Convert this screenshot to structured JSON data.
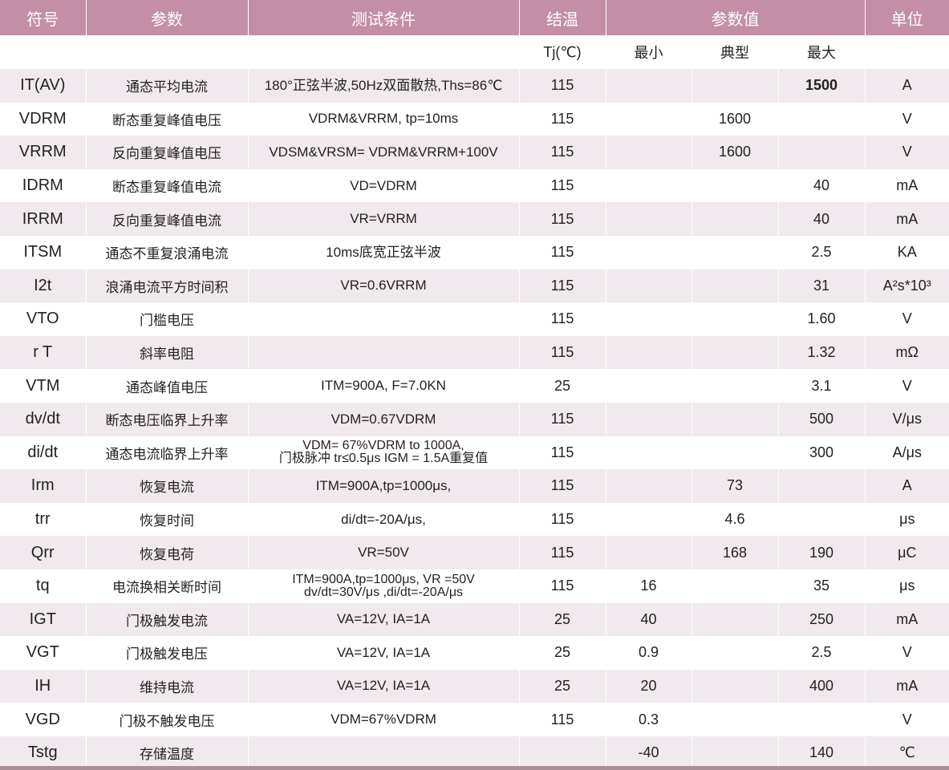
{
  "header": {
    "symbol": "符号",
    "parameter": "参数",
    "condition": "测试条件",
    "junction_temp": "结温",
    "values": "参数值",
    "unit": "单位"
  },
  "subheader": {
    "tj": "Tj(℃)",
    "min": "最小",
    "typ": "典型",
    "max": "最大"
  },
  "rows": [
    {
      "symbol": "IT(AV)",
      "name": "通态平均电流",
      "condition": "180°正弦半波,50Hz双面散热,Ths=86℃",
      "tj": "115",
      "min": "",
      "typ": "",
      "max": "1500",
      "unit": "A",
      "max_bold": true
    },
    {
      "symbol": "VDRM",
      "name": "断态重复峰值电压",
      "condition": "VDRM&VRRM, tp=10ms",
      "tj": "115",
      "min": "",
      "typ": "1600",
      "max": "",
      "unit": "V"
    },
    {
      "symbol": "VRRM",
      "name": "反向重复峰值电压",
      "condition": "VDSM&VRSM= VDRM&VRRM+100V",
      "tj": "115",
      "min": "",
      "typ": "1600",
      "max": "",
      "unit": "V"
    },
    {
      "symbol": "IDRM",
      "name": "断态重复峰值电流",
      "condition": "VD=VDRM",
      "tj": "115",
      "min": "",
      "typ": "",
      "max": "40",
      "unit": "mA"
    },
    {
      "symbol": "IRRM",
      "name": "反向重复峰值电流",
      "condition": "VR=VRRM",
      "tj": "115",
      "min": "",
      "typ": "",
      "max": "40",
      "unit": "mA"
    },
    {
      "symbol": "ITSM",
      "name": "通态不重复浪涌电流",
      "condition": "10ms底宽正弦半波",
      "tj": "115",
      "min": "",
      "typ": "",
      "max": "2.5",
      "unit": "KA"
    },
    {
      "symbol": "I2t",
      "name": "浪涌电流平方时间积",
      "condition": "VR=0.6VRRM",
      "tj": "115",
      "min": "",
      "typ": "",
      "max": "31",
      "unit": "A²s*10³"
    },
    {
      "symbol": "VTO",
      "name": "门槛电压",
      "condition": "",
      "tj": "115",
      "min": "",
      "typ": "",
      "max": "1.60",
      "unit": "V"
    },
    {
      "symbol": "r T",
      "name": "斜率电阻",
      "condition": "",
      "tj": "115",
      "min": "",
      "typ": "",
      "max": "1.32",
      "unit": "mΩ"
    },
    {
      "symbol": "VTM",
      "name": "通态峰值电压",
      "condition": "ITM=900A, F=7.0KN",
      "tj": "25",
      "min": "",
      "typ": "",
      "max": "3.1",
      "unit": "V"
    },
    {
      "symbol": "dv/dt",
      "name": "断态电压临界上升率",
      "condition": "VDM=0.67VDRM",
      "tj": "115",
      "min": "",
      "typ": "",
      "max": "500",
      "unit": "V/μs"
    },
    {
      "symbol": "di/dt",
      "name": "通态电流临界上升率",
      "condition": "VDM= 67%VDRM to 1000A,",
      "condition2": "门极脉冲 tr≤0.5μs IGM = 1.5A重复值",
      "tj": "115",
      "min": "",
      "typ": "",
      "max": "300",
      "unit": "A/μs"
    },
    {
      "symbol": "Irm",
      "name": "恢复电流",
      "condition": "ITM=900A,tp=1000μs,",
      "tj": "115",
      "min": "",
      "typ": "73",
      "max": "",
      "unit": "A"
    },
    {
      "symbol": "trr",
      "name": "恢复时间",
      "condition": "di/dt=-20A/μs,",
      "tj": "115",
      "min": "",
      "typ": "4.6",
      "max": "",
      "unit": "μs"
    },
    {
      "symbol": "Qrr",
      "name": "恢复电荷",
      "condition": "VR=50V",
      "tj": "115",
      "min": "",
      "typ": "168",
      "max": "190",
      "unit": "μC"
    },
    {
      "symbol": "tq",
      "name": "电流换相关断时间",
      "condition": "ITM=900A,tp=1000μs, VR =50V",
      "condition2": "dv/dt=30V/μs ,di/dt=-20A/μs",
      "tj": "115",
      "min": "16",
      "typ": "",
      "max": "35",
      "unit": "μs"
    },
    {
      "symbol": "IGT",
      "name": "门极触发电流",
      "condition": "VA=12V, IA=1A",
      "tj": "25",
      "min": "40",
      "typ": "",
      "max": "250",
      "unit": "mA"
    },
    {
      "symbol": "VGT",
      "name": "门极触发电压",
      "condition": "VA=12V, IA=1A",
      "tj": "25",
      "min": "0.9",
      "typ": "",
      "max": "2.5",
      "unit": "V"
    },
    {
      "symbol": "IH",
      "name": "维持电流",
      "condition": "VA=12V, IA=1A",
      "tj": "25",
      "min": "20",
      "typ": "",
      "max": "400",
      "unit": "mA"
    },
    {
      "symbol": "VGD",
      "name": "门极不触发电压",
      "condition": "VDM=67%VDRM",
      "tj": "115",
      "min": "0.3",
      "typ": "",
      "max": "",
      "unit": "V"
    },
    {
      "symbol": "Tstg",
      "name": "存储温度",
      "condition": "",
      "tj": "",
      "min": "-40",
      "typ": "",
      "max": "140",
      "unit": "℃"
    }
  ],
  "colors": {
    "header_bg": "#c58ea7",
    "row_alt_bg": "#f0e9ed",
    "text": "#231f20"
  }
}
